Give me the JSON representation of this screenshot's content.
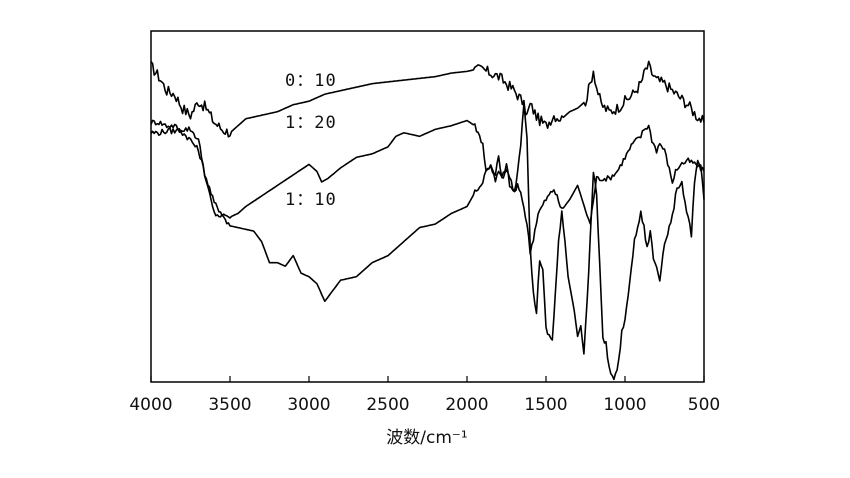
{
  "chart_data": {
    "type": "line",
    "title": "",
    "xlabel": "波数/cm⁻¹",
    "ylabel": "",
    "xlim": [
      4000,
      500
    ],
    "x_reversed": true,
    "x_ticks": [
      4000,
      3500,
      3000,
      2500,
      2000,
      1500,
      1000,
      500
    ],
    "x_tick_labels": [
      "4000",
      "3500",
      "3000",
      "2500",
      "2000",
      "1500",
      "1000",
      "500"
    ],
    "ylim": [
      0,
      100
    ],
    "y_ticks_shown": false,
    "grid": false,
    "legend": "inline",
    "series": [
      {
        "name": "0:10",
        "label": "0：10",
        "x": [
          4000,
          3950,
          3900,
          3850,
          3800,
          3750,
          3700,
          3650,
          3600,
          3550,
          3500,
          3450,
          3400,
          3300,
          3200,
          3100,
          3000,
          2900,
          2800,
          2600,
          2400,
          2200,
          2100,
          2000,
          1950,
          1900,
          1850,
          1800,
          1750,
          1700,
          1650,
          1620,
          1600,
          1550,
          1500,
          1450,
          1400,
          1350,
          1300,
          1250,
          1220,
          1200,
          1180,
          1150,
          1100,
          1050,
          1000,
          950,
          900,
          870,
          850,
          830,
          800,
          750,
          700,
          650,
          600,
          550,
          500
        ],
        "y": [
          90,
          87,
          83,
          82,
          78,
          76,
          80,
          78,
          74,
          72,
          71,
          73,
          75,
          76,
          77,
          79,
          80,
          82,
          83,
          85,
          86,
          87,
          88,
          88.5,
          89,
          89,
          88,
          87,
          85,
          83,
          80,
          76,
          79,
          75,
          73,
          76,
          75,
          77,
          78,
          80,
          85,
          89,
          84,
          79,
          77,
          78,
          80,
          82,
          85,
          89,
          90,
          88,
          86,
          85,
          83,
          81,
          79,
          76,
          74
        ]
      },
      {
        "name": "1:20",
        "label": "1：20",
        "x": [
          4000,
          3950,
          3900,
          3850,
          3800,
          3750,
          3700,
          3650,
          3600,
          3550,
          3500,
          3450,
          3400,
          3300,
          3200,
          3100,
          3000,
          2950,
          2920,
          2880,
          2800,
          2700,
          2600,
          2500,
          2450,
          2400,
          2300,
          2200,
          2100,
          2000,
          1950,
          1900,
          1880,
          1850,
          1820,
          1800,
          1780,
          1750,
          1730,
          1700,
          1680,
          1650,
          1620,
          1600,
          1580,
          1550,
          1500,
          1450,
          1400,
          1350,
          1300,
          1250,
          1220,
          1200,
          1180,
          1150,
          1100,
          1050,
          1000,
          950,
          900,
          880,
          850,
          830,
          800,
          780,
          750,
          700,
          680,
          650,
          600,
          550,
          500
        ],
        "y": [
          74,
          74,
          73,
          73,
          71,
          69,
          66,
          58,
          51,
          48,
          47,
          48,
          50,
          53,
          56,
          59,
          62,
          60,
          57,
          58,
          61,
          64,
          65,
          67,
          70,
          71,
          70,
          72,
          73,
          74.5,
          73,
          68,
          60,
          62,
          57,
          60,
          58,
          62,
          56,
          54,
          56,
          52,
          45,
          37,
          41,
          48,
          52,
          55,
          49,
          52,
          56,
          49,
          45,
          52,
          58,
          58,
          58,
          60,
          64,
          68,
          70,
          72,
          73,
          69,
          66,
          68,
          66,
          57,
          60,
          62,
          63,
          62,
          60
        ]
      },
      {
        "name": "1:10",
        "label": "1：10",
        "x": [
          4000,
          3950,
          3900,
          3850,
          3800,
          3750,
          3700,
          3650,
          3600,
          3550,
          3500,
          3450,
          3400,
          3350,
          3300,
          3250,
          3200,
          3150,
          3100,
          3050,
          3000,
          2950,
          2900,
          2850,
          2800,
          2700,
          2600,
          2500,
          2400,
          2300,
          2200,
          2100,
          2000,
          1950,
          1900,
          1870,
          1850,
          1820,
          1800,
          1780,
          1750,
          1720,
          1700,
          1680,
          1660,
          1640,
          1620,
          1600,
          1580,
          1560,
          1540,
          1520,
          1500,
          1480,
          1460,
          1440,
          1420,
          1400,
          1380,
          1360,
          1340,
          1320,
          1300,
          1280,
          1260,
          1240,
          1220,
          1200,
          1180,
          1160,
          1140,
          1120,
          1100,
          1080,
          1060,
          1040,
          1020,
          1000,
          980,
          960,
          940,
          920,
          900,
          880,
          860,
          840,
          820,
          800,
          780,
          760,
          740,
          720,
          700,
          680,
          660,
          640,
          620,
          600,
          580,
          560,
          540,
          520,
          500
        ],
        "y": [
          71,
          71,
          71.5,
          71.5,
          72,
          72,
          69,
          57,
          48,
          47,
          44.5,
          44,
          43.5,
          43,
          40,
          34,
          34,
          33,
          36,
          31,
          30,
          28,
          23,
          26,
          29,
          30,
          34,
          36,
          40,
          44,
          45,
          48,
          50,
          54,
          57,
          61,
          62,
          59,
          64,
          58,
          60,
          57,
          54,
          60,
          68,
          80,
          70,
          38,
          25,
          20,
          35,
          32,
          15,
          13,
          12,
          26,
          40,
          48,
          40,
          30,
          25,
          20,
          13,
          16,
          8,
          23,
          41,
          60,
          54,
          34,
          12,
          11,
          4,
          1,
          2,
          6,
          14,
          18,
          24,
          33,
          40,
          44,
          48,
          44,
          38,
          43,
          35,
          33,
          29,
          37,
          41,
          44,
          47,
          53,
          56,
          57,
          51,
          47,
          42,
          56,
          63,
          61,
          52
        ]
      }
    ]
  }
}
